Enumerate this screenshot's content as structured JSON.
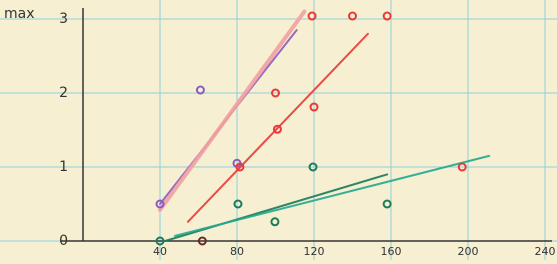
{
  "chart_data": {
    "type": "scatter",
    "y_label": "max",
    "xlim": [
      0,
      240
    ],
    "ylim": [
      0,
      3
    ],
    "xticks": [
      40,
      80,
      120,
      160,
      200,
      240
    ],
    "yticks": [
      0,
      1,
      2,
      3
    ],
    "grid": true,
    "series": [
      {
        "color": "#8a5cc0",
        "x": [
          40,
          61,
          80
        ],
        "values": [
          0.5,
          2.04,
          1.05
        ]
      },
      {
        "color": "#e83838",
        "x": [
          119,
          140,
          158,
          101,
          120,
          81.5,
          197,
          100
        ],
        "values": [
          3.04,
          3.04,
          3.04,
          1.51,
          1.81,
          1.0,
          1.0,
          2.0
        ]
      },
      {
        "color": "#1a7a5a",
        "x": [
          40,
          80.5,
          99.7,
          119.5,
          158
        ],
        "values": [
          0,
          0.5,
          0.26,
          1.0,
          0.5
        ]
      },
      {
        "color": "#6a2a2a",
        "x": [
          62
        ],
        "values": [
          0
        ]
      }
    ],
    "lines": [
      {
        "color": "#8a5cc0",
        "x": [
          40,
          111
        ],
        "values": [
          0.5,
          2.85
        ]
      },
      {
        "color": "#f4a0a0",
        "x": [
          40,
          115
        ],
        "values": [
          0.42,
          3.1
        ]
      },
      {
        "color": "#e83838",
        "x": [
          54.5,
          148
        ],
        "values": [
          0.26,
          2.8
        ]
      },
      {
        "color": "#1a7a5a",
        "x": [
          42.6,
          158
        ],
        "values": [
          0,
          0.9
        ]
      },
      {
        "color": "#20a890",
        "x": [
          47.8,
          211
        ],
        "values": [
          0.07,
          1.15
        ]
      }
    ]
  }
}
